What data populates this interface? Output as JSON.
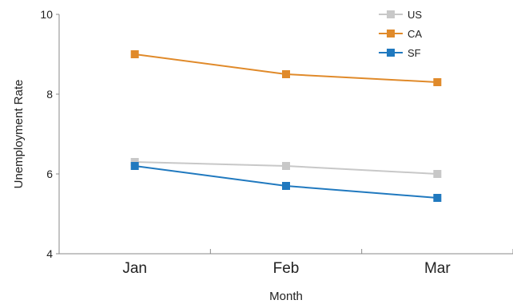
{
  "chart_data": {
    "type": "line",
    "title": "",
    "xlabel": "Month",
    "ylabel": "Unemployment Rate",
    "categories": [
      "Jan",
      "Feb",
      "Mar"
    ],
    "ylim": [
      4,
      10
    ],
    "yticks": [
      4,
      6,
      8,
      10
    ],
    "grid": false,
    "legend_position": "top-right",
    "series": [
      {
        "name": "US",
        "color": "#c8c8c8",
        "values": [
          6.3,
          6.2,
          6.0
        ]
      },
      {
        "name": "CA",
        "color": "#e08a2a",
        "values": [
          9.0,
          8.5,
          8.3
        ]
      },
      {
        "name": "SF",
        "color": "#2079bf",
        "values": [
          6.2,
          5.7,
          5.4
        ]
      }
    ]
  }
}
